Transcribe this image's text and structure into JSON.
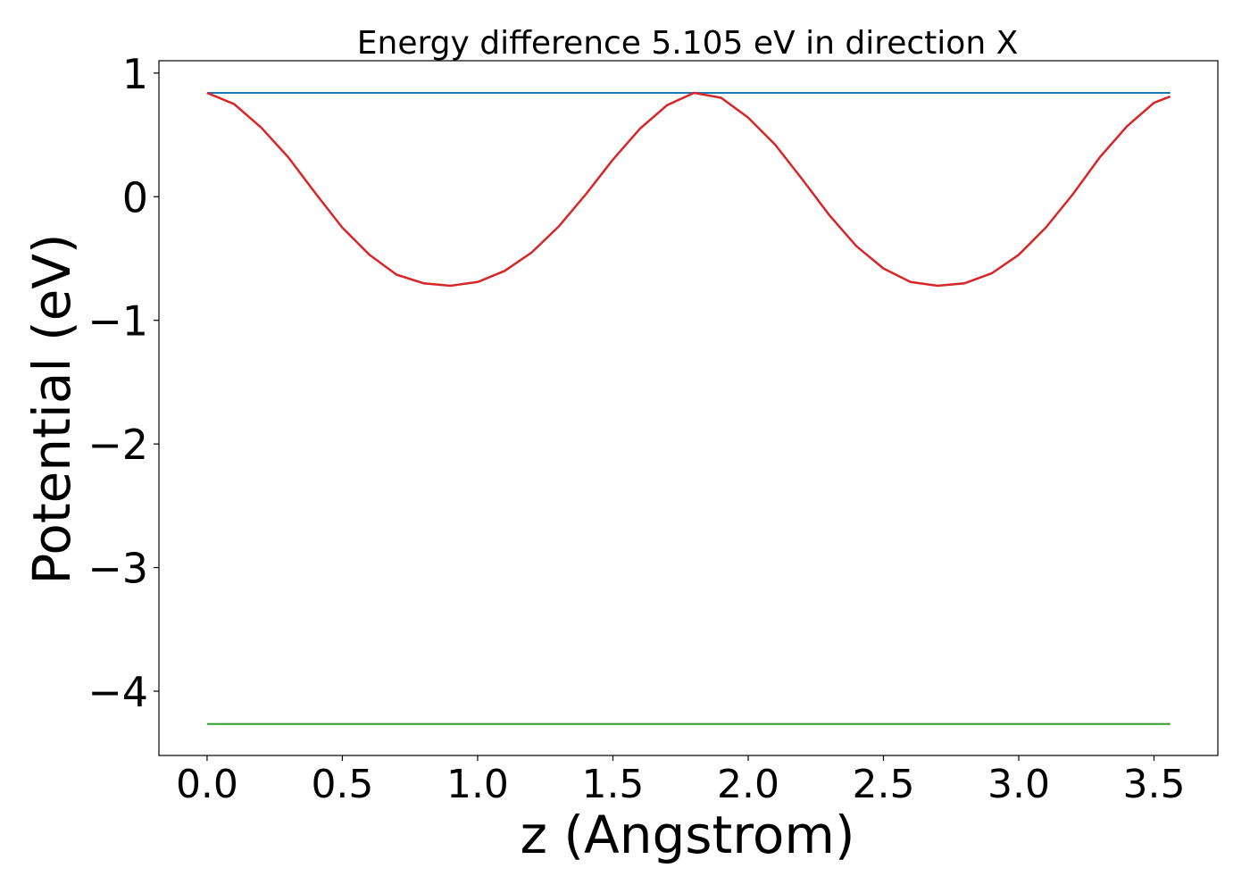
{
  "chart_data": {
    "type": "line",
    "title": "Energy difference 5.105 eV in direction X",
    "xlabel": "z (Angstrom)",
    "ylabel": "Potential (eV)",
    "xlim": [
      -0.178,
      3.736
    ],
    "ylim": [
      -4.52,
      1.1
    ],
    "xticks": [
      0.0,
      0.5,
      1.0,
      1.5,
      2.0,
      2.5,
      3.0,
      3.5
    ],
    "xtick_labels": [
      "0.0",
      "0.5",
      "1.0",
      "1.5",
      "2.0",
      "2.5",
      "3.0",
      "3.5"
    ],
    "yticks": [
      1,
      0,
      -1,
      -2,
      -3,
      -4
    ],
    "ytick_labels": [
      "1",
      "0",
      "−1",
      "−2",
      "−3",
      "−4"
    ],
    "grid": false,
    "series": [
      {
        "color": "#d62728",
        "x": [
          0.0,
          0.1,
          0.2,
          0.3,
          0.4,
          0.5,
          0.6,
          0.7,
          0.8,
          0.9,
          1.0,
          1.1,
          1.2,
          1.3,
          1.4,
          1.5,
          1.6,
          1.7,
          1.8,
          1.9,
          2.0,
          2.1,
          2.2,
          2.3,
          2.4,
          2.5,
          2.6,
          2.7,
          2.8,
          2.9,
          3.0,
          3.1,
          3.2,
          3.3,
          3.4,
          3.5,
          3.56
        ],
        "y": [
          0.84,
          0.75,
          0.56,
          0.32,
          0.03,
          -0.25,
          -0.47,
          -0.63,
          -0.7,
          -0.72,
          -0.69,
          -0.6,
          -0.45,
          -0.24,
          0.02,
          0.3,
          0.55,
          0.74,
          0.84,
          0.8,
          0.64,
          0.42,
          0.14,
          -0.15,
          -0.4,
          -0.58,
          -0.69,
          -0.72,
          -0.7,
          -0.62,
          -0.47,
          -0.25,
          0.02,
          0.32,
          0.57,
          0.76,
          0.81
        ]
      },
      {
        "color": "#1f77b4",
        "x": [
          0.0,
          3.56
        ],
        "y": [
          0.84,
          0.84
        ]
      },
      {
        "color": "#2ca02c",
        "x": [
          0.0,
          3.56
        ],
        "y": [
          -4.265,
          -4.265
        ]
      }
    ]
  }
}
